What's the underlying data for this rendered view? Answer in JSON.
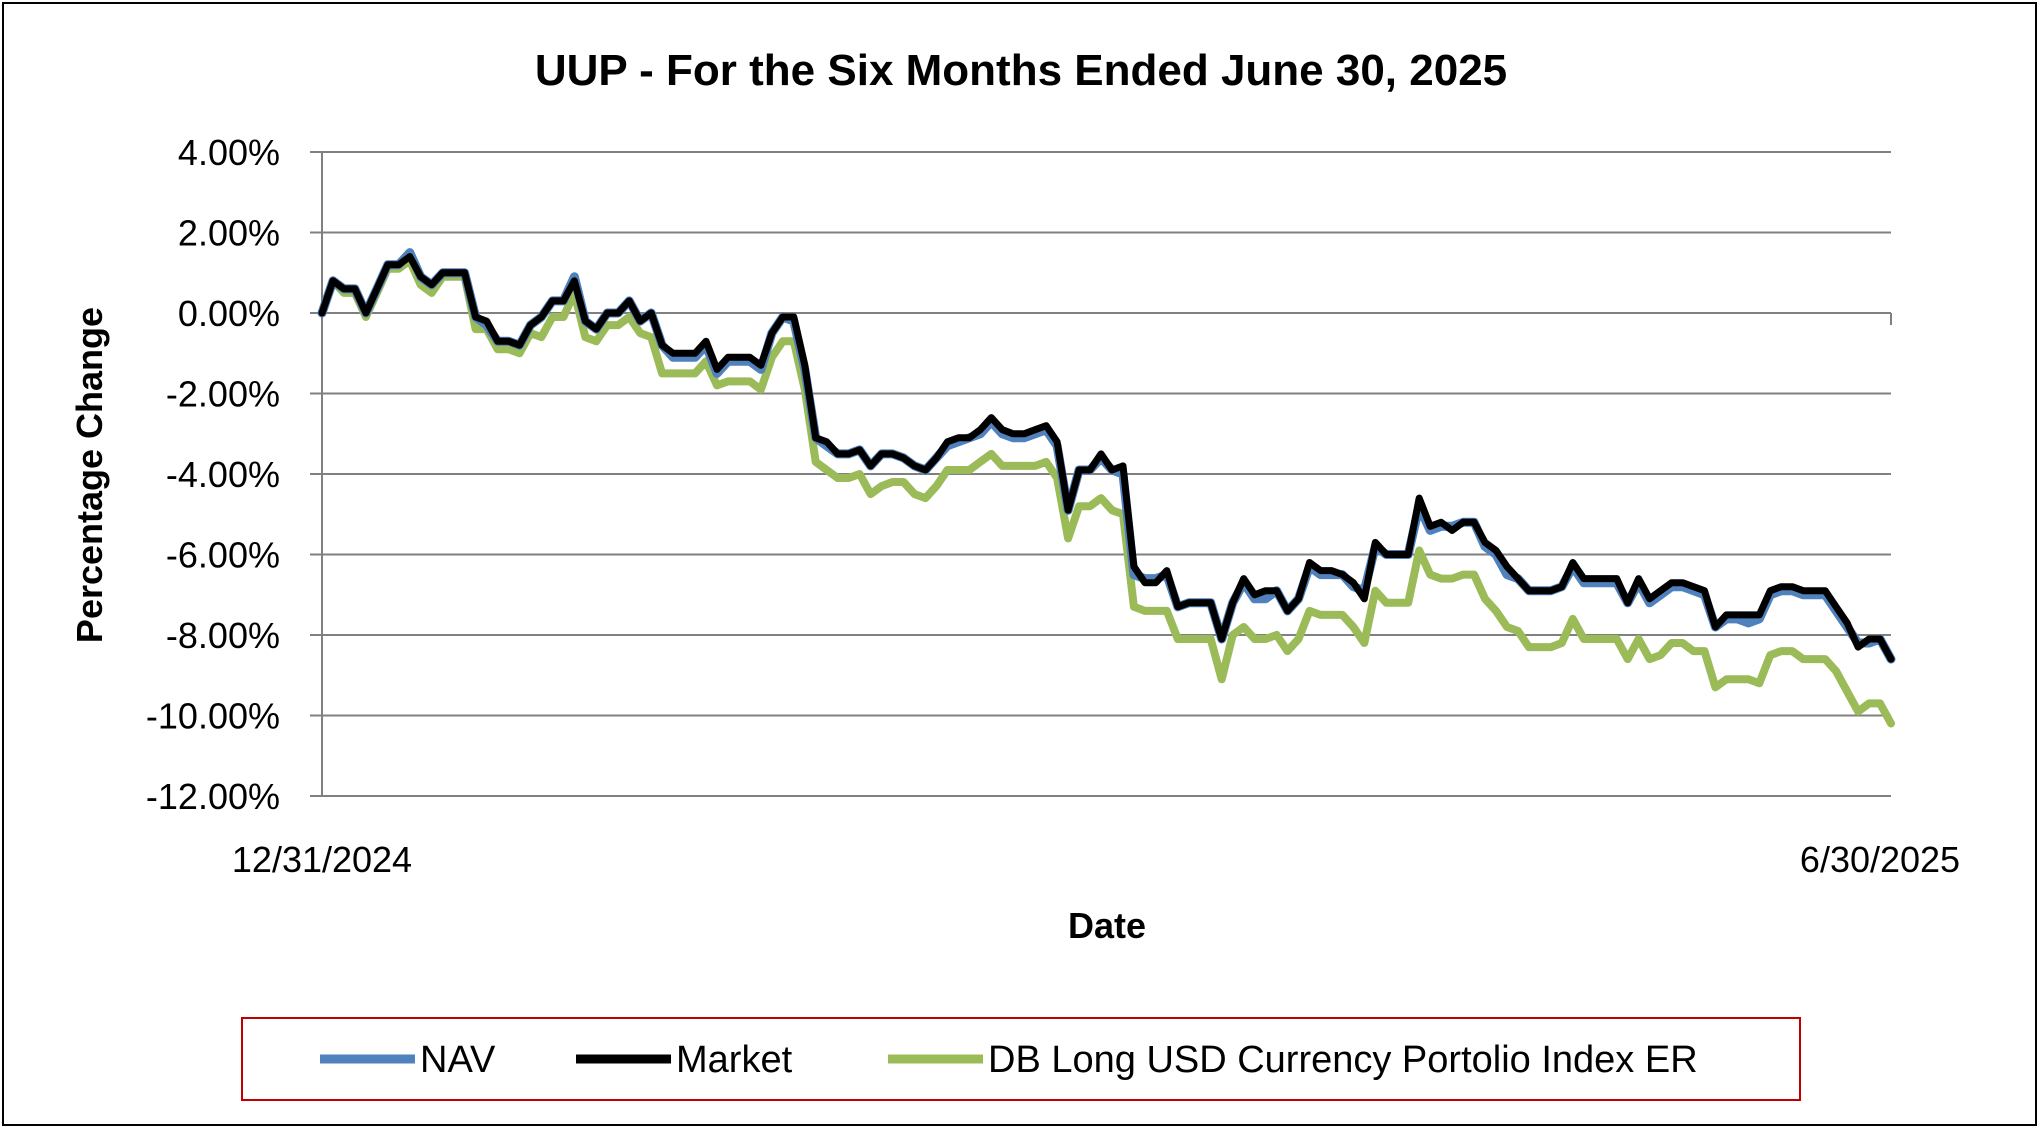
{
  "chart_data": {
    "type": "line",
    "title": "UUP - For the Six Months Ended June 30, 2025",
    "xlabel": "Date",
    "ylabel": "Percentage Change",
    "x_tick_labels": [
      "12/31/2024",
      "6/30/2025"
    ],
    "y_tick_labels": [
      "4.00%",
      "2.00%",
      "0.00%",
      "-2.00%",
      "-4.00%",
      "-6.00%",
      "-8.00%",
      "-10.00%",
      "-12.00%"
    ],
    "y_tick_values": [
      4,
      2,
      0,
      -2,
      -4,
      -6,
      -8,
      -10,
      -12
    ],
    "ylim": [
      -12,
      4
    ],
    "grid": true,
    "legend_position": "bottom",
    "series": [
      {
        "name": "NAV",
        "color": "#4f81bd",
        "values": [
          0,
          0.8,
          0.6,
          0.6,
          0.0,
          0.6,
          1.2,
          1.2,
          1.5,
          0.9,
          0.7,
          1.0,
          1.0,
          1.0,
          -0.1,
          -0.3,
          -0.7,
          -0.7,
          -0.8,
          -0.3,
          -0.1,
          0.3,
          0.3,
          0.9,
          -0.2,
          -0.4,
          0.0,
          0.0,
          0.3,
          -0.2,
          0.0,
          -0.8,
          -1.1,
          -1.1,
          -1.1,
          -0.8,
          -1.5,
          -1.2,
          -1.2,
          -1.2,
          -1.4,
          -0.5,
          -0.1,
          -0.2,
          -1.4,
          -3.1,
          -3.3,
          -3.5,
          -3.5,
          -3.4,
          -3.8,
          -3.5,
          -3.5,
          -3.6,
          -3.8,
          -3.9,
          -3.6,
          -3.3,
          -3.2,
          -3.1,
          -3.0,
          -2.7,
          -3.0,
          -3.1,
          -3.1,
          -3.0,
          -2.9,
          -3.3,
          -4.9,
          -3.9,
          -3.9,
          -3.6,
          -3.9,
          -4.0,
          -6.5,
          -6.6,
          -6.6,
          -6.5,
          -7.3,
          -7.2,
          -7.2,
          -7.2,
          -8.1,
          -7.2,
          -6.7,
          -7.1,
          -7.1,
          -6.9,
          -7.4,
          -7.1,
          -6.3,
          -6.5,
          -6.5,
          -6.5,
          -6.8,
          -6.9,
          -5.8,
          -6.0,
          -6.0,
          -6.0,
          -4.8,
          -5.4,
          -5.3,
          -5.3,
          -5.2,
          -5.2,
          -5.8,
          -6.0,
          -6.5,
          -6.6,
          -6.9,
          -6.9,
          -6.9,
          -6.8,
          -6.3,
          -6.7,
          -6.7,
          -6.7,
          -6.7,
          -7.2,
          -6.7,
          -7.2,
          -7.0,
          -6.8,
          -6.8,
          -6.9,
          -7.0,
          -7.8,
          -7.6,
          -7.6,
          -7.7,
          -7.6,
          -7.0,
          -6.9,
          -6.9,
          -7.0,
          -7.0,
          -7.0,
          -7.4,
          -7.8,
          -8.2,
          -8.2,
          -8.1,
          -8.6
        ]
      },
      {
        "name": "Market",
        "color": "#000000",
        "values": [
          0,
          0.8,
          0.6,
          0.6,
          0.0,
          0.6,
          1.2,
          1.2,
          1.4,
          0.9,
          0.7,
          1.0,
          1.0,
          1.0,
          -0.1,
          -0.2,
          -0.7,
          -0.7,
          -0.8,
          -0.3,
          -0.1,
          0.3,
          0.3,
          0.8,
          -0.2,
          -0.4,
          0.0,
          0.0,
          0.3,
          -0.2,
          0.0,
          -0.8,
          -1.0,
          -1.0,
          -1.0,
          -0.7,
          -1.4,
          -1.1,
          -1.1,
          -1.1,
          -1.3,
          -0.5,
          -0.1,
          -0.1,
          -1.3,
          -3.1,
          -3.2,
          -3.5,
          -3.5,
          -3.4,
          -3.8,
          -3.5,
          -3.5,
          -3.6,
          -3.8,
          -3.9,
          -3.6,
          -3.2,
          -3.1,
          -3.1,
          -2.9,
          -2.6,
          -2.9,
          -3.0,
          -3.0,
          -2.9,
          -2.8,
          -3.2,
          -4.9,
          -3.9,
          -3.9,
          -3.5,
          -3.9,
          -3.8,
          -6.3,
          -6.7,
          -6.7,
          -6.4,
          -7.3,
          -7.2,
          -7.2,
          -7.2,
          -8.1,
          -7.2,
          -6.6,
          -7.0,
          -6.9,
          -6.9,
          -7.4,
          -7.1,
          -6.2,
          -6.4,
          -6.4,
          -6.5,
          -6.7,
          -7.1,
          -5.7,
          -6.0,
          -6.0,
          -6.0,
          -4.6,
          -5.3,
          -5.2,
          -5.4,
          -5.2,
          -5.2,
          -5.7,
          -5.9,
          -6.3,
          -6.6,
          -6.9,
          -6.9,
          -6.9,
          -6.8,
          -6.2,
          -6.6,
          -6.6,
          -6.6,
          -6.6,
          -7.2,
          -6.6,
          -7.1,
          -6.9,
          -6.7,
          -6.7,
          -6.8,
          -6.9,
          -7.8,
          -7.5,
          -7.5,
          -7.5,
          -7.5,
          -6.9,
          -6.8,
          -6.8,
          -6.9,
          -6.9,
          -6.9,
          -7.3,
          -7.7,
          -8.3,
          -8.1,
          -8.1,
          -8.6
        ]
      },
      {
        "name": "DB Long USD Currency Portolio Index ER",
        "color": "#9bbb59",
        "values": [
          0,
          0.8,
          0.5,
          0.5,
          -0.1,
          0.5,
          1.1,
          1.1,
          1.3,
          0.7,
          0.5,
          0.9,
          0.9,
          0.9,
          -0.4,
          -0.4,
          -0.9,
          -0.9,
          -1.0,
          -0.5,
          -0.6,
          -0.1,
          -0.1,
          0.5,
          -0.6,
          -0.7,
          -0.3,
          -0.3,
          -0.1,
          -0.5,
          -0.6,
          -1.5,
          -1.5,
          -1.5,
          -1.5,
          -1.2,
          -1.8,
          -1.7,
          -1.7,
          -1.7,
          -1.9,
          -1.1,
          -0.7,
          -0.7,
          -1.9,
          -3.7,
          -3.9,
          -4.1,
          -4.1,
          -4.0,
          -4.5,
          -4.3,
          -4.2,
          -4.2,
          -4.5,
          -4.6,
          -4.3,
          -3.9,
          -3.9,
          -3.9,
          -3.7,
          -3.5,
          -3.8,
          -3.8,
          -3.8,
          -3.8,
          -3.7,
          -4.1,
          -5.6,
          -4.8,
          -4.8,
          -4.6,
          -4.9,
          -5.0,
          -7.3,
          -7.4,
          -7.4,
          -7.4,
          -8.1,
          -8.1,
          -8.1,
          -8.1,
          -9.1,
          -8.0,
          -7.8,
          -8.1,
          -8.1,
          -8.0,
          -8.4,
          -8.1,
          -7.4,
          -7.5,
          -7.5,
          -7.5,
          -7.8,
          -8.2,
          -6.9,
          -7.2,
          -7.2,
          -7.2,
          -5.9,
          -6.5,
          -6.6,
          -6.6,
          -6.5,
          -6.5,
          -7.1,
          -7.4,
          -7.8,
          -7.9,
          -8.3,
          -8.3,
          -8.3,
          -8.2,
          -7.6,
          -8.1,
          -8.1,
          -8.1,
          -8.1,
          -8.6,
          -8.1,
          -8.6,
          -8.5,
          -8.2,
          -8.2,
          -8.4,
          -8.4,
          -9.3,
          -9.1,
          -9.1,
          -9.1,
          -9.2,
          -8.5,
          -8.4,
          -8.4,
          -8.6,
          -8.6,
          -8.6,
          -8.9,
          -9.4,
          -9.9,
          -9.7,
          -9.7,
          -10.2
        ]
      }
    ]
  }
}
